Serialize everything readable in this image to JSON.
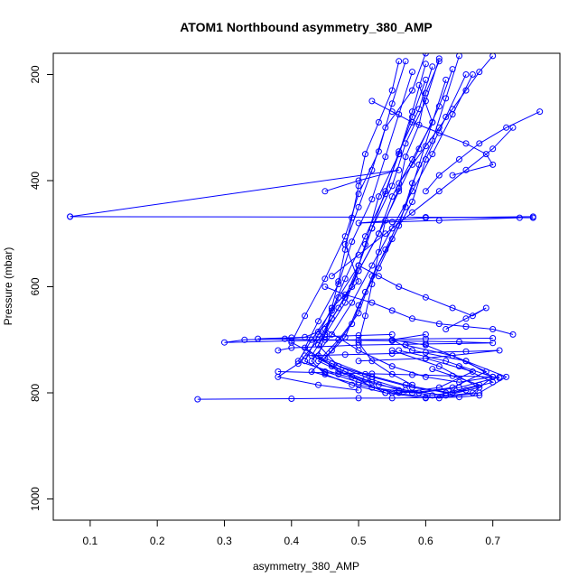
{
  "chart_data": {
    "type": "line",
    "title": "ATOM1 Northbound asymmetry_380_AMP",
    "xlabel": "asymmetry_380_AMP",
    "ylabel": "Pressure (mbar)",
    "xlim": [
      0.045,
      0.8
    ],
    "ylim": [
      1040,
      160
    ],
    "y_reversed": true,
    "x_ticks": [
      0.1,
      0.2,
      0.3,
      0.4,
      0.5,
      0.6,
      0.7
    ],
    "y_ticks": [
      200,
      400,
      600,
      800,
      1000
    ],
    "grid": false,
    "legend": "none",
    "marker": "open-circle",
    "series": [
      {
        "x": [
          0.6,
          0.58,
          0.54,
          0.52,
          0.5,
          0.48,
          0.5,
          0.46,
          0.44,
          0.42,
          0.45,
          0.5,
          0.55,
          0.62,
          0.68,
          0.72,
          0.66,
          0.58,
          0.55,
          0.6
        ],
        "y": [
          160,
          230,
          300,
          380,
          450,
          520,
          590,
          640,
          690,
          740,
          760,
          780,
          800,
          810,
          800,
          770,
          740,
          720,
          700,
          690
        ]
      },
      {
        "x": [
          0.62,
          0.6,
          0.57,
          0.55,
          0.52,
          0.5,
          0.47,
          0.45,
          0.5,
          0.55,
          0.6,
          0.65,
          0.7,
          0.66,
          0.6,
          0.55
        ],
        "y": [
          170,
          250,
          330,
          410,
          490,
          560,
          620,
          680,
          720,
          750,
          770,
          780,
          770,
          740,
          710,
          700
        ]
      },
      {
        "x": [
          0.64,
          0.62,
          0.59,
          0.56,
          0.53,
          0.5,
          0.48,
          0.45,
          0.43,
          0.48,
          0.52,
          0.58,
          0.64,
          0.69,
          0.64,
          0.57
        ],
        "y": [
          190,
          260,
          340,
          420,
          500,
          570,
          630,
          690,
          730,
          760,
          790,
          800,
          790,
          760,
          730,
          710
        ]
      },
      {
        "x": [
          0.66,
          0.63,
          0.6,
          0.58,
          0.55,
          0.52,
          0.5,
          0.47,
          0.44,
          0.49,
          0.54,
          0.6,
          0.67,
          0.7,
          0.63,
          0.56
        ],
        "y": [
          200,
          280,
          360,
          440,
          510,
          580,
          650,
          700,
          740,
          770,
          800,
          810,
          800,
          770,
          740,
          720
        ]
      },
      {
        "x": [
          0.6,
          0.58,
          0.56,
          0.53,
          0.51,
          0.49,
          0.46,
          0.44,
          0.47,
          0.52,
          0.57,
          0.63,
          0.68,
          0.62,
          0.55
        ],
        "y": [
          180,
          270,
          350,
          430,
          520,
          600,
          660,
          710,
          750,
          775,
          795,
          805,
          790,
          750,
          720
        ]
      },
      {
        "x": [
          0.63,
          0.61,
          0.59,
          0.57,
          0.54,
          0.51,
          0.49,
          0.46,
          0.43,
          0.5,
          0.56,
          0.62,
          0.67,
          0.6
        ],
        "y": [
          210,
          290,
          370,
          450,
          530,
          610,
          670,
          720,
          760,
          785,
          800,
          790,
          760,
          735
        ]
      },
      {
        "x": [
          0.57,
          0.55,
          0.53,
          0.5,
          0.48,
          0.45,
          0.42,
          0.4,
          0.46,
          0.52,
          0.58,
          0.64,
          0.7,
          0.65
        ],
        "y": [
          175,
          255,
          345,
          425,
          505,
          585,
          655,
          705,
          745,
          770,
          790,
          800,
          780,
          750
        ]
      },
      {
        "x": [
          0.65,
          0.63,
          0.61,
          0.58,
          0.56,
          0.53,
          0.5,
          0.48,
          0.45,
          0.51,
          0.57,
          0.63,
          0.68,
          0.61
        ],
        "y": [
          165,
          245,
          325,
          405,
          485,
          565,
          635,
          695,
          735,
          765,
          785,
          800,
          785,
          755
        ]
      },
      {
        "x": [
          0.61,
          0.59,
          0.56,
          0.54,
          0.51,
          0.48,
          0.46,
          0.43,
          0.41,
          0.47,
          0.53,
          0.59,
          0.65,
          0.71
        ],
        "y": [
          185,
          265,
          345,
          425,
          505,
          585,
          645,
          700,
          740,
          765,
          785,
          800,
          790,
          770
        ]
      },
      {
        "x": [
          0.58,
          0.56,
          0.54,
          0.52,
          0.49,
          0.47,
          0.44,
          0.42,
          0.46,
          0.51,
          0.56,
          0.61,
          0.66
        ],
        "y": [
          195,
          275,
          355,
          435,
          515,
          595,
          665,
          715,
          750,
          775,
          795,
          805,
          795
        ]
      },
      {
        "x": [
          0.56,
          0.55,
          0.53,
          0.51,
          0.5,
          0.49,
          0.48,
          0.47,
          0.46,
          0.45,
          0.44,
          0.47,
          0.52
        ],
        "y": [
          175,
          230,
          290,
          350,
          410,
          470,
          530,
          590,
          640,
          690,
          730,
          760,
          780
        ]
      },
      {
        "x": [
          0.62,
          0.6,
          0.59,
          0.57,
          0.56,
          0.54,
          0.53,
          0.52,
          0.51,
          0.5,
          0.52,
          0.55,
          0.58
        ],
        "y": [
          175,
          235,
          295,
          355,
          415,
          475,
          535,
          595,
          655,
          705,
          740,
          765,
          785
        ]
      },
      {
        "x": [
          0.67,
          0.64,
          0.61,
          0.58,
          0.55,
          0.52,
          0.49,
          0.46,
          0.43,
          0.45,
          0.49,
          0.54
        ],
        "y": [
          200,
          275,
          350,
          420,
          490,
          560,
          630,
          690,
          740,
          765,
          785,
          800
        ]
      },
      {
        "x": [
          0.59,
          0.61,
          0.58,
          0.55,
          0.53,
          0.5,
          0.47,
          0.44,
          0.41,
          0.38,
          0.44,
          0.5
        ],
        "y": [
          220,
          290,
          360,
          430,
          500,
          570,
          640,
          700,
          745,
          770,
          785,
          795
        ]
      },
      {
        "x": [
          0.6,
          0.58,
          0.56,
          0.54,
          0.52,
          0.5,
          0.48,
          0.46,
          0.44,
          0.42,
          0.39,
          0.33,
          0.3,
          0.4,
          0.5,
          0.6,
          0.7
        ],
        "y": [
          210,
          280,
          350,
          420,
          490,
          560,
          620,
          660,
          685,
          695,
          698,
          700,
          705,
          702,
          700,
          698,
          697
        ]
      },
      {
        "x": [
          0.55,
          0.5,
          0.45,
          0.4,
          0.35,
          0.45,
          0.55,
          0.65,
          0.7,
          0.6,
          0.5,
          0.4,
          0.38
        ],
        "y": [
          690,
          692,
          694,
          696,
          698,
          700,
          702,
          704,
          706,
          708,
          710,
          715,
          720
        ]
      },
      {
        "x": [
          0.07,
          0.6,
          0.76
        ],
        "y": [
          468,
          469,
          470
        ]
      },
      {
        "x": [
          0.07,
          0.56,
          0.5,
          0.45
        ],
        "y": [
          468,
          380,
          400,
          420
        ]
      },
      {
        "x": [
          0.74,
          0.62,
          0.55,
          0.5,
          0.6,
          0.76
        ],
        "y": [
          470,
          475,
          478,
          480,
          470,
          468
        ]
      },
      {
        "x": [
          0.26,
          0.4,
          0.5,
          0.55,
          0.6,
          0.65,
          0.68
        ],
        "y": [
          812,
          811,
          810,
          810,
          809,
          808,
          805
        ]
      },
      {
        "x": [
          0.38,
          0.45,
          0.52,
          0.58,
          0.64,
          0.7,
          0.71
        ],
        "y": [
          760,
          762,
          764,
          766,
          768,
          770,
          772
        ]
      },
      {
        "x": [
          0.42,
          0.48,
          0.55,
          0.6,
          0.66,
          0.71,
          0.6,
          0.5
        ],
        "y": [
          730,
          728,
          726,
          724,
          722,
          720,
          735,
          740
        ]
      },
      {
        "x": [
          0.7,
          0.68,
          0.66,
          0.64,
          0.62,
          0.6,
          0.58,
          0.56
        ],
        "y": [
          165,
          195,
          230,
          265,
          300,
          335,
          370,
          405
        ]
      },
      {
        "x": [
          0.77,
          0.72,
          0.68,
          0.65,
          0.62,
          0.6
        ],
        "y": [
          270,
          300,
          330,
          360,
          390,
          420
        ]
      },
      {
        "x": [
          0.73,
          0.7,
          0.66,
          0.62,
          0.58,
          0.54,
          0.5,
          0.46
        ],
        "y": [
          300,
          340,
          380,
          420,
          460,
          500,
          540,
          580
        ]
      },
      {
        "x": [
          0.52,
          0.55,
          0.58,
          0.62,
          0.66,
          0.69,
          0.7,
          0.64
        ],
        "y": [
          250,
          270,
          290,
          310,
          330,
          350,
          370,
          390
        ]
      },
      {
        "x": [
          0.5,
          0.53,
          0.56,
          0.6,
          0.64,
          0.67,
          0.69,
          0.66,
          0.63
        ],
        "y": [
          560,
          580,
          600,
          620,
          640,
          655,
          640,
          660,
          680
        ]
      },
      {
        "x": [
          0.45,
          0.48,
          0.52,
          0.55,
          0.58,
          0.62,
          0.66,
          0.7,
          0.73
        ],
        "y": [
          600,
          615,
          630,
          645,
          660,
          670,
          675,
          680,
          690
        ]
      }
    ]
  }
}
